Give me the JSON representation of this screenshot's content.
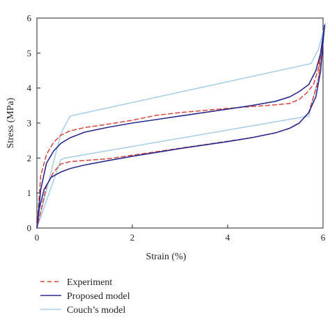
{
  "chart_data": {
    "type": "line",
    "title": "",
    "xlabel": "Strain (%)",
    "ylabel": "Stress (MPa)",
    "xlim": [
      0,
      6
    ],
    "ylim": [
      0,
      6
    ],
    "xticks": [
      0,
      2,
      4,
      6
    ],
    "yticks": [
      0,
      1,
      2,
      3,
      4,
      5,
      6
    ],
    "grid": false,
    "legend_position": "bottom-left, below plot",
    "series": [
      {
        "name": "Experiment",
        "color": "#d9443a",
        "style": "dashed",
        "x": [
          0,
          0.08,
          0.2,
          0.35,
          0.5,
          0.7,
          1.0,
          1.5,
          2.0,
          2.5,
          3.0,
          3.5,
          4.0,
          4.5,
          5.0,
          5.3,
          5.5,
          5.65,
          5.8,
          5.9,
          5.98,
          5.9,
          5.8,
          5.7,
          5.5,
          5.3,
          5.0,
          4.5,
          4.0,
          3.5,
          3.0,
          2.5,
          2.0,
          1.5,
          1.0,
          0.7,
          0.5,
          0.35,
          0.2,
          0.1,
          0
        ],
        "y": [
          0,
          1.5,
          2.1,
          2.45,
          2.65,
          2.78,
          2.87,
          2.97,
          3.08,
          3.22,
          3.3,
          3.36,
          3.42,
          3.47,
          3.52,
          3.56,
          3.68,
          3.85,
          4.1,
          4.55,
          5.3,
          4.2,
          3.75,
          3.3,
          3.0,
          2.85,
          2.72,
          2.58,
          2.48,
          2.38,
          2.28,
          2.18,
          2.08,
          1.98,
          1.93,
          1.9,
          1.83,
          1.6,
          1.2,
          0.6,
          0
        ]
      },
      {
        "name": "Proposed model",
        "color": "#2a2a8e",
        "style": "solid",
        "x": [
          0,
          0.08,
          0.2,
          0.35,
          0.5,
          0.7,
          1.0,
          1.5,
          2.0,
          2.5,
          3.0,
          3.5,
          4.0,
          4.5,
          5.0,
          5.3,
          5.5,
          5.7,
          5.85,
          5.95,
          6.03,
          5.95,
          5.85,
          5.7,
          5.5,
          5.3,
          5.0,
          4.5,
          4.0,
          3.5,
          3.0,
          2.5,
          2.0,
          1.5,
          1.0,
          0.7,
          0.5,
          0.3,
          0.15,
          0.05,
          0
        ],
        "y": [
          0,
          1.1,
          1.85,
          2.2,
          2.42,
          2.58,
          2.74,
          2.88,
          3.0,
          3.1,
          3.2,
          3.3,
          3.4,
          3.5,
          3.62,
          3.75,
          3.9,
          4.1,
          4.5,
          5.0,
          5.8,
          4.5,
          3.75,
          3.3,
          3.0,
          2.85,
          2.72,
          2.58,
          2.47,
          2.37,
          2.27,
          2.16,
          2.05,
          1.93,
          1.8,
          1.7,
          1.6,
          1.45,
          1.1,
          0.55,
          0
        ]
      },
      {
        "name": "Couch’s model",
        "color": "#a9cfe6",
        "style": "solid",
        "x": [
          0,
          0.5,
          0.7,
          5.75,
          5.9,
          6.05,
          5.9,
          5.7,
          0.6,
          0.5,
          0
        ],
        "y": [
          0,
          2.7,
          3.2,
          4.7,
          5.1,
          5.85,
          4.3,
          3.2,
          2.0,
          1.95,
          0
        ]
      }
    ]
  }
}
